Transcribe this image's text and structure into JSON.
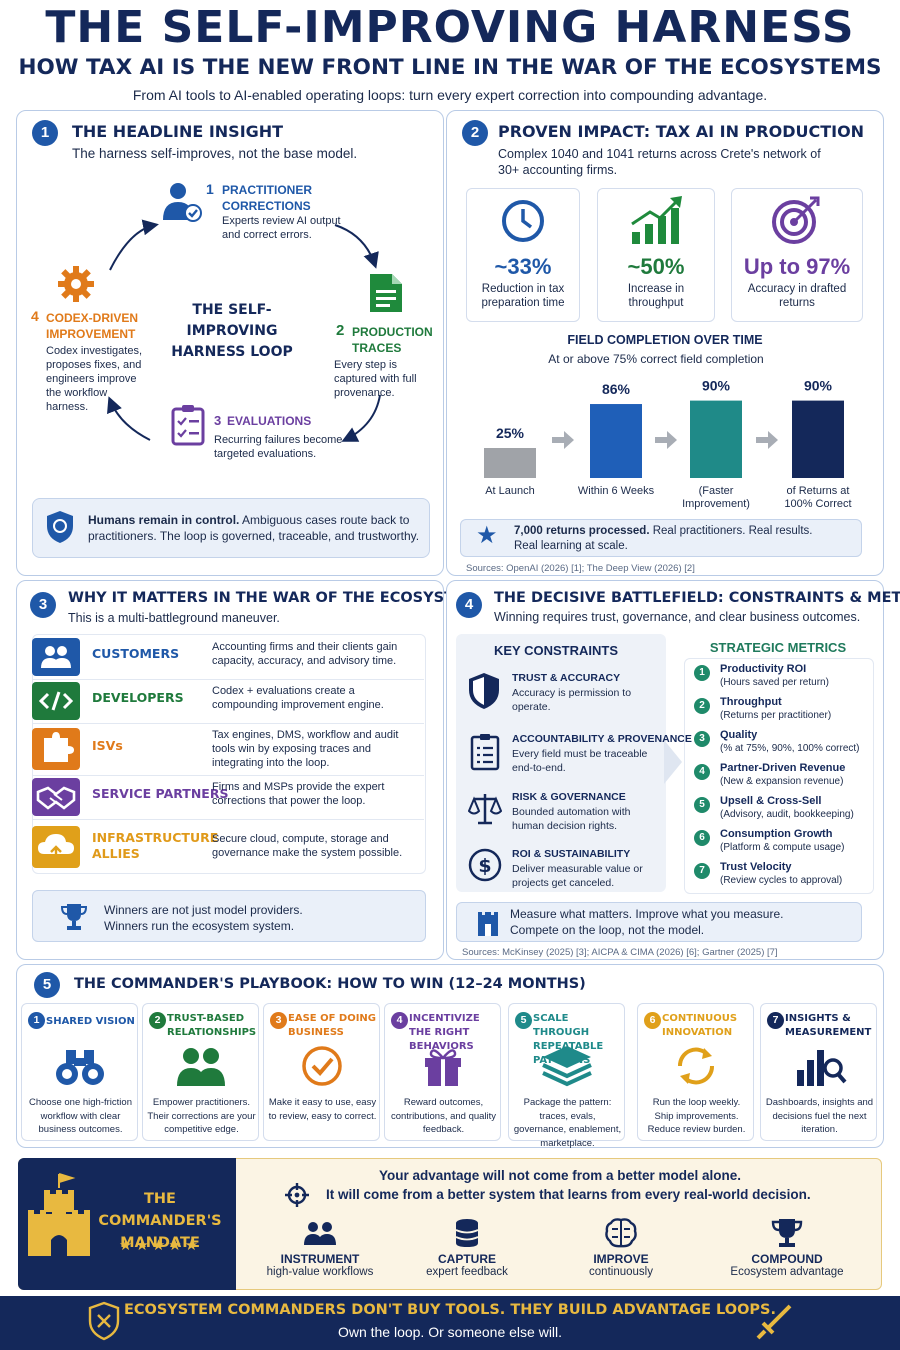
{
  "header": {
    "title": "THE SELF-IMPROVING HARNESS",
    "subtitle": "HOW TAX AI IS THE NEW FRONT LINE IN THE WAR OF THE ECOSYSTEMS",
    "tagline": "From AI tools to AI-enabled operating loops: turn every expert correction into compounding advantage."
  },
  "s1": {
    "num": "1",
    "title": "THE HEADLINE INSIGHT",
    "sub": "The harness self-improves, not the base model.",
    "loop_title": "THE SELF-IMPROVING HARNESS LOOP",
    "steps": [
      {
        "num": "1",
        "title": "PRACTITIONER CORRECTIONS",
        "desc": "Experts review AI output and correct errors."
      },
      {
        "num": "2",
        "title": "PRODUCTION TRACES",
        "desc": "Every step is captured with full provenance."
      },
      {
        "num": "3",
        "title": "EVALUATIONS",
        "desc": "Recurring failures become targeted evaluations."
      },
      {
        "num": "4",
        "title": "CODEX-DRIVEN IMPROVEMENT",
        "desc": "Codex investigates, proposes fixes, and engineers improve the workflow harness."
      }
    ],
    "control_bold": "Humans remain in control.",
    "control_text": "Ambiguous cases route back to practitioners. The loop is governed, traceable, and trustworthy."
  },
  "s2": {
    "num": "2",
    "title": "PROVEN IMPACT: TAX AI IN PRODUCTION",
    "sub": "Complex 1040 and 1041 returns across Crete's network of 30+ accounting firms.",
    "stats": [
      {
        "value": "~33%",
        "label": "Reduction in tax preparation time",
        "icon": "clock-icon"
      },
      {
        "value": "~50%",
        "label": "Increase in throughput",
        "icon": "growth-chart-icon"
      },
      {
        "value": "Up to 97%",
        "label": "Accuracy in drafted returns",
        "icon": "target-icon"
      }
    ],
    "chart_title": "FIELD COMPLETION OVER TIME",
    "chart_sub": "At or above 75% correct field completion",
    "results_bold": "7,000 returns processed.",
    "results_text": "Real practitioners. Real results.",
    "results_text2": "Real learning at scale.",
    "sources": "Sources: OpenAI (2026) [1]; The Deep View (2026) [2]"
  },
  "chart_data": {
    "type": "bar",
    "title": "FIELD COMPLETION OVER TIME",
    "subtitle": "At or above 75% correct field completion",
    "categories": [
      "At Launch",
      "Within 6 Weeks",
      "(Faster Improvement)",
      "of Returns at 100% Correct"
    ],
    "values": [
      25,
      86,
      90,
      90
    ],
    "value_labels": [
      "25%",
      "86%",
      "90%",
      "90%"
    ],
    "colors": [
      "#a0a3a8",
      "#1f5fb8",
      "#1f8a88",
      "#14285a"
    ],
    "ylim": [
      0,
      100
    ],
    "grid": false,
    "legend": "none"
  },
  "s3": {
    "num": "3",
    "title": "WHY IT MATTERS IN THE WAR OF THE ECOSYSTEMS",
    "sub": "This is a multi-battleground maneuver.",
    "rows": [
      {
        "label": "CUSTOMERS",
        "desc": "Accounting firms and their clients gain capacity, accuracy, and advisory time.",
        "color": "#1f58a8",
        "icon": "people-icon"
      },
      {
        "label": "DEVELOPERS",
        "desc": "Codex + evaluations create a compounding improvement engine.",
        "color": "#1f7a3c",
        "icon": "code-icon"
      },
      {
        "label": "ISVs",
        "desc": "Tax engines, DMS, workflow and audit tools win by exposing traces and integrating into the loop.",
        "color": "#e07a1a",
        "icon": "puzzle-icon"
      },
      {
        "label": "SERVICE PARTNERS",
        "desc": "Firms and MSPs provide the expert corrections that power the loop.",
        "color": "#6b3fa0",
        "icon": "handshake-icon"
      },
      {
        "label": "INFRASTRUCTURE ALLIES",
        "desc": "Secure cloud, compute, storage and governance make the system possible.",
        "color": "#e0a01a",
        "icon": "cloud-icon"
      }
    ],
    "winners_1": "Winners are not just model providers.",
    "winners_2": "Winners run the ecosystem system."
  },
  "s4": {
    "num": "4",
    "title": "THE DECISIVE BATTLEFIELD: CONSTRAINTS & METRICS",
    "sub": "Winning requires trust, governance, and clear business outcomes.",
    "constraints_title": "KEY CONSTRAINTS",
    "constraints": [
      {
        "title": "TRUST & ACCURACY",
        "desc": "Accuracy is permission to operate.",
        "icon": "shield-icon"
      },
      {
        "title": "ACCOUNTABILITY & PROVENANCE",
        "desc": "Every field must be traceable end-to-end.",
        "icon": "checklist-icon"
      },
      {
        "title": "RISK & GOVERNANCE",
        "desc": "Bounded automation with human decision rights.",
        "icon": "scales-icon"
      },
      {
        "title": "ROI & SUSTAINABILITY",
        "desc": "Deliver measurable value or projects get canceled.",
        "icon": "dollar-icon"
      }
    ],
    "metrics_title": "STRATEGIC METRICS",
    "metrics": [
      {
        "num": "1",
        "title": "Productivity ROI",
        "desc": "(Hours saved per return)"
      },
      {
        "num": "2",
        "title": "Throughput",
        "desc": "(Returns per practitioner)"
      },
      {
        "num": "3",
        "title": "Quality",
        "desc": "(% at 75%, 90%, 100% correct)"
      },
      {
        "num": "4",
        "title": "Partner-Driven Revenue",
        "desc": "(New & expansion revenue)"
      },
      {
        "num": "5",
        "title": "Upsell & Cross-Sell",
        "desc": "(Advisory, audit, bookkeeping)"
      },
      {
        "num": "6",
        "title": "Consumption Growth",
        "desc": "(Platform & compute usage)"
      },
      {
        "num": "7",
        "title": "Trust Velocity",
        "desc": "(Review cycles to approval)"
      }
    ],
    "measure_1": "Measure what matters. Improve what you measure.",
    "measure_2": "Compete on the loop, not the model.",
    "sources": "Sources: McKinsey (2025) [3]; AICPA & CIMA (2026) [6]; Gartner (2025) [7]"
  },
  "s5": {
    "num": "5",
    "title": "THE COMMANDER'S PLAYBOOK: HOW TO WIN (12–24 MONTHS)",
    "items": [
      {
        "num": "1",
        "title": "SHARED VISION",
        "desc": "Choose one high-friction workflow with clear business outcomes.",
        "color": "#1f58a8",
        "icon": "binoculars-icon"
      },
      {
        "num": "2",
        "title": "TRUST-BASED RELATIONSHIPS",
        "desc": "Empower practitioners. Their corrections are your competitive edge.",
        "color": "#1f7a3c",
        "icon": "people-icon"
      },
      {
        "num": "3",
        "title": "EASE OF DOING BUSINESS",
        "desc": "Make it easy to use, easy to review, easy to correct.",
        "color": "#e07a1a",
        "icon": "check-circle-icon"
      },
      {
        "num": "4",
        "title": "INCENTIVIZE THE RIGHT BEHAVIORS",
        "desc": "Reward outcomes, contributions, and quality feedback.",
        "color": "#6b3fa0",
        "icon": "gift-icon"
      },
      {
        "num": "5",
        "title": "SCALE THROUGH REPEATABLE PATTERNS",
        "desc": "Package the pattern: traces, evals, governance, enablement, marketplace.",
        "color": "#1f8a8a",
        "icon": "layers-icon"
      },
      {
        "num": "6",
        "title": "CONTINUOUS INNOVATION",
        "desc": "Run the loop weekly. Ship improvements. Reduce review burden.",
        "color": "#e0a01a",
        "icon": "cycle-icon"
      },
      {
        "num": "7",
        "title": "INSIGHTS & MEASUREMENT",
        "desc": "Dashboards, insights and decisions fuel the next iteration.",
        "color": "#14285a",
        "icon": "analytics-icon"
      }
    ]
  },
  "mandate": {
    "title": "THE COMMANDER'S MANDATE",
    "stars": "★★★★★",
    "line1": "Your advantage will not come from a better model alone.",
    "line2": "It will come from a better system that learns from every real-world decision.",
    "items": [
      {
        "title": "INSTRUMENT",
        "desc": "high-value workflows",
        "icon": "people-icon"
      },
      {
        "title": "CAPTURE",
        "desc": "expert feedback",
        "icon": "database-icon"
      },
      {
        "title": "IMPROVE",
        "desc": "continuously",
        "icon": "brain-icon"
      },
      {
        "title": "COMPOUND",
        "desc": "Ecosystem advantage",
        "icon": "trophy-icon"
      }
    ]
  },
  "footer": {
    "line1": "ECOSYSTEM COMMANDERS DON'T BUY TOOLS. THEY BUILD ADVANTAGE LOOPS.",
    "line2": "Own the loop. Or someone else will."
  }
}
